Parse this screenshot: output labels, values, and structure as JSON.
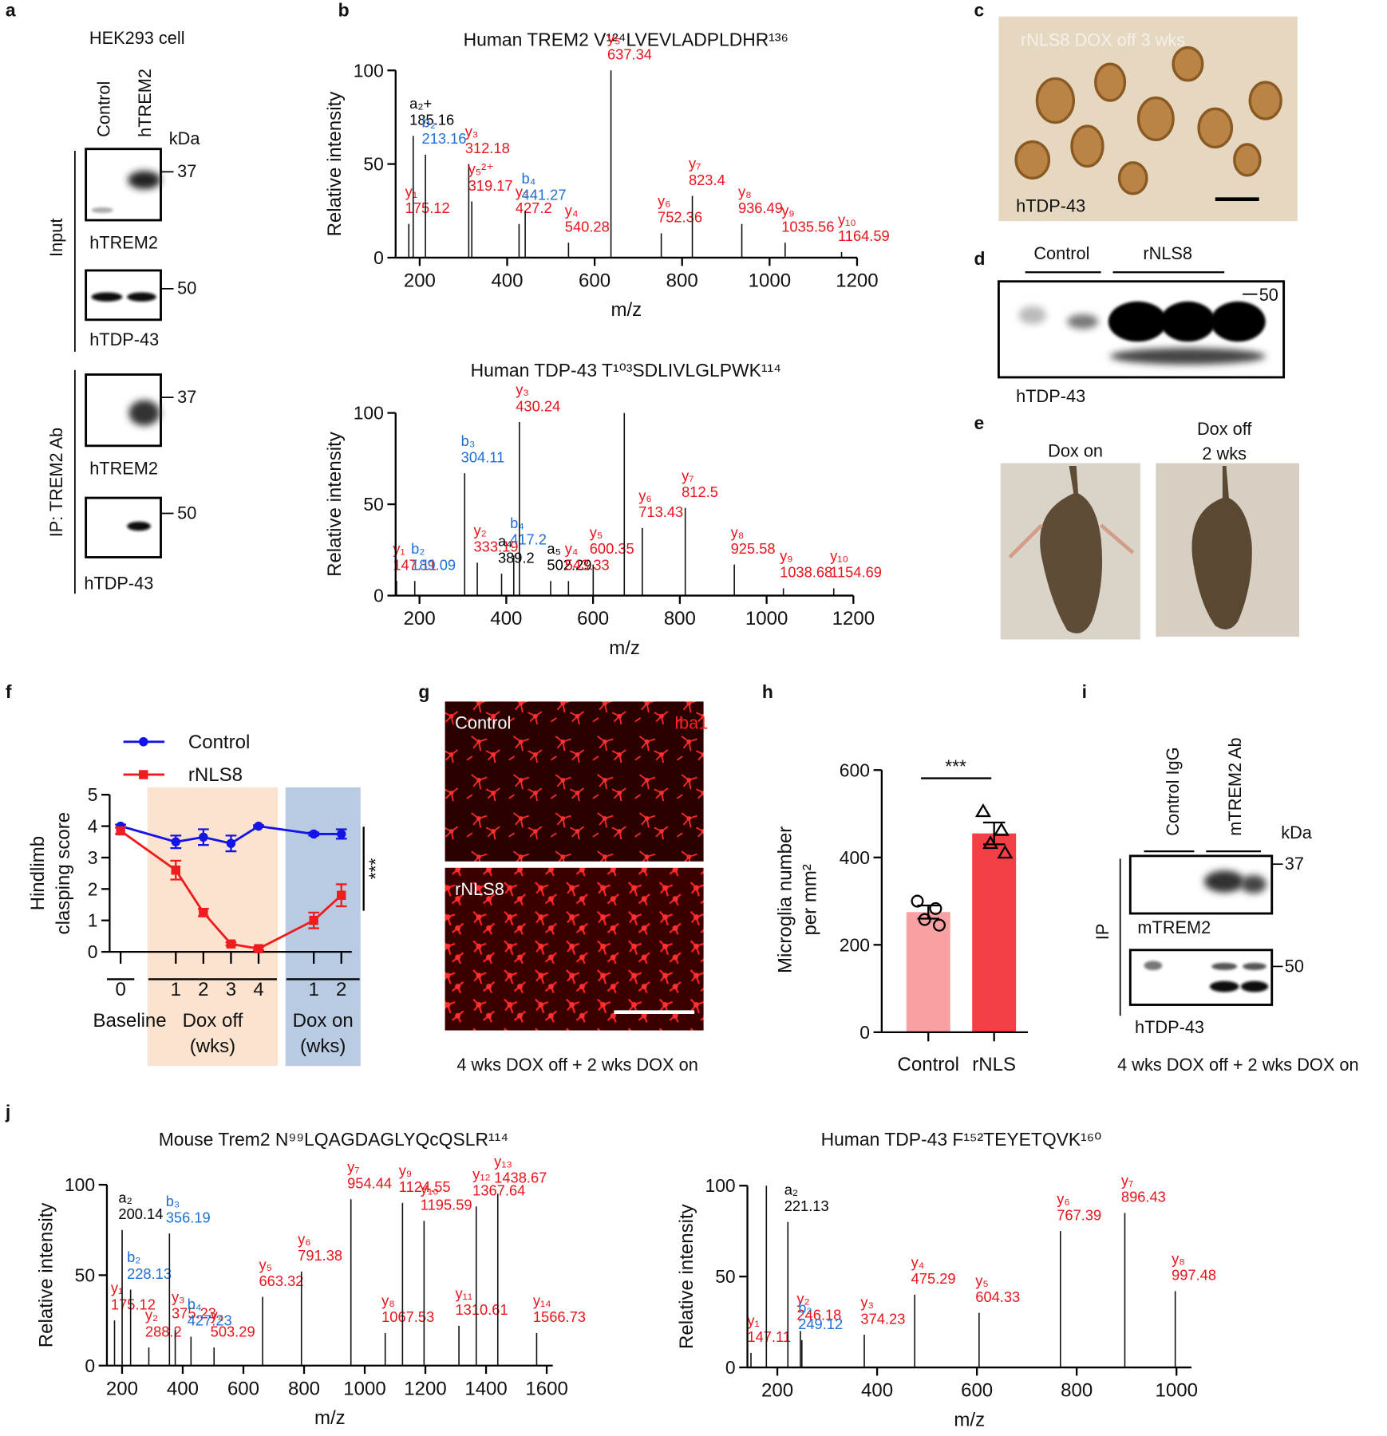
{
  "panel_labels": [
    "a",
    "b",
    "c",
    "d",
    "e",
    "f",
    "g",
    "h",
    "i",
    "j"
  ],
  "panel_a": {
    "cell": "HEK293 cell",
    "lanes": [
      "Control",
      "hTREM2"
    ],
    "kda": "kDa",
    "groups": [
      "Input",
      "IP: TREM2 Ab"
    ],
    "blots": [
      {
        "label": "hTREM2",
        "marker": "37"
      },
      {
        "label": "hTDP-43",
        "marker": "50"
      },
      {
        "label": "hTREM2",
        "marker": "37"
      },
      {
        "label": "hTDP-43",
        "marker": "50"
      }
    ]
  },
  "panel_c": {
    "caption": "rNLS8 DOX off 3 wks",
    "stain": "hTDP-43"
  },
  "panel_d": {
    "groups": [
      "Control",
      "rNLS8"
    ],
    "marker": "50",
    "label": "hTDP-43"
  },
  "panel_e": {
    "labels": [
      "Dox on",
      "Dox off",
      "2 wks"
    ]
  },
  "panel_g": {
    "images": [
      "Control",
      "rNLS8"
    ],
    "stain": "Iba1",
    "caption": "4 wks DOX off + 2 wks DOX on"
  },
  "panel_i": {
    "lanes": [
      "Control IgG",
      "mTREM2 Ab"
    ],
    "kda": "kDa",
    "group": "IP",
    "blots": [
      {
        "label": "mTREM2",
        "marker": "37"
      },
      {
        "label": "hTDP-43",
        "marker": "50"
      }
    ],
    "caption": "4 wks DOX off + 2 wks DOX on"
  },
  "chart_data": [
    {
      "type": "spectrum",
      "title": "Human TREM2 V¹²⁴LVEVLADPLDHR¹³⁶",
      "xlabel": "m/z",
      "ylabel": "Relative intensity",
      "xlim": [
        145,
        1200
      ],
      "ylim": [
        0,
        100
      ],
      "xticks": [
        200,
        400,
        600,
        800,
        1000,
        1200
      ],
      "yticks": [
        0,
        50,
        100
      ],
      "ion_colors": {
        "y": "#e8141b",
        "b": "#1e6fd6",
        "a": "#000000"
      },
      "mz": [
        175.12,
        185.16,
        213.16,
        312.18,
        319.17,
        427.2,
        441.27,
        540.28,
        637.34,
        752.36,
        823.4,
        936.49,
        1035.56,
        1164.59
      ],
      "intensity": [
        18,
        65,
        55,
        50,
        30,
        18,
        25,
        8,
        100,
        13,
        33,
        18,
        8,
        3
      ],
      "ion": [
        "y₁",
        "a₂+",
        "b₂",
        "y₃",
        "y₅²⁺",
        "y₃",
        "b₄",
        "y₄",
        "y₅",
        "y₆",
        "y₇",
        "y₈",
        "y₉",
        "y₁₀"
      ]
    },
    {
      "type": "spectrum",
      "title": "Human TDP-43 T¹⁰³SDLIVLGLPWK¹¹⁴",
      "xlabel": "m/z",
      "ylabel": "Relative intensity",
      "xlim": [
        145,
        1200
      ],
      "ylim": [
        0,
        100
      ],
      "xticks": [
        200,
        400,
        600,
        800,
        1000,
        1200
      ],
      "yticks": [
        0,
        50,
        100
      ],
      "ion_colors": {
        "y": "#e8141b",
        "b": "#1e6fd6",
        "a": "#000000"
      },
      "mz": [
        147.11,
        189.09,
        304.11,
        333.19,
        389.2,
        417.2,
        430.24,
        502.29,
        543.33,
        600.35,
        672,
        713.43,
        812.5,
        925.58,
        1038.68,
        1154.69
      ],
      "intensity": [
        8,
        8,
        67,
        18,
        12,
        22,
        95,
        8,
        8,
        17,
        100,
        37,
        48,
        17,
        4,
        4
      ],
      "ion": [
        "y₁",
        "b₂",
        "b₃",
        "y₂",
        "a₄",
        "b₄",
        "y₃",
        "a₅",
        "y₄",
        "y₅",
        null,
        "y₆",
        "y₇",
        "y₈",
        "y₉",
        "y₁₀"
      ]
    },
    {
      "type": "line",
      "ylabel": [
        "Hindlimb",
        "clasping  score"
      ],
      "ylim": [
        0,
        5
      ],
      "yticks": [
        0,
        1,
        2,
        3,
        4,
        5
      ],
      "groups": [
        {
          "name": [
            "Baseline"
          ],
          "categories": [
            "0"
          ]
        },
        {
          "name": [
            "Dox off",
            "(wks)"
          ],
          "categories": [
            "1",
            "2",
            "3",
            "4"
          ],
          "color": "#fbe3cf"
        },
        {
          "name": [
            "Dox on",
            "(wks)"
          ],
          "categories": [
            "1",
            "2"
          ],
          "color": "#b8cbe3"
        }
      ],
      "series": [
        {
          "name": "Control",
          "color": "#1414e6",
          "marker": "circle",
          "values": [
            4.0,
            3.5,
            3.65,
            3.45,
            4.0,
            3.75,
            3.75
          ],
          "errors": [
            0.05,
            0.2,
            0.25,
            0.25,
            0.03,
            0.05,
            0.15
          ]
        },
        {
          "name": "rNLS8",
          "color": "#ee1c1c",
          "marker": "square",
          "values": [
            3.85,
            2.6,
            1.25,
            0.25,
            0.1,
            1.0,
            1.8
          ],
          "errors": [
            0.1,
            0.3,
            0.12,
            0.05,
            0.05,
            0.25,
            0.35
          ]
        }
      ],
      "annotation": "***",
      "legend": "upper left"
    },
    {
      "type": "bar",
      "ylabel": [
        "Microglia number",
        "per mm²"
      ],
      "categories": [
        "Control",
        "rNLS"
      ],
      "values": [
        275,
        455
      ],
      "errors": [
        15,
        25
      ],
      "colors": [
        "#f9a0a3",
        "#f43f45"
      ],
      "points": [
        [
          300,
          283,
          258,
          245
        ],
        [
          505,
          462,
          432,
          410
        ]
      ],
      "markers": [
        "circle",
        "triangle"
      ],
      "ylim": [
        0,
        600
      ],
      "yticks": [
        0,
        200,
        400,
        600
      ],
      "annotation": "***"
    },
    {
      "type": "spectrum",
      "title": "Mouse Trem2 N⁹⁹LQAGDAGLYQcQSLR¹¹⁴",
      "xlabel": "m/z",
      "ylabel": "Relative intensity",
      "xlim": [
        150,
        1620
      ],
      "ylim": [
        0,
        100
      ],
      "xticks": [
        200,
        400,
        600,
        800,
        1000,
        1200,
        1400,
        1600
      ],
      "yticks": [
        0,
        50,
        100
      ],
      "ion_colors": {
        "y": "#e8141b",
        "b": "#1e6fd6",
        "a": "#000000"
      },
      "mz": [
        175.12,
        200.14,
        228.13,
        288.2,
        356.19,
        375.23,
        427.23,
        503.29,
        663.32,
        791.38,
        954.44,
        1067.53,
        1124.55,
        1195.59,
        1310.61,
        1367.64,
        1438.67,
        1566.73
      ],
      "intensity": [
        25,
        75,
        42,
        10,
        73,
        20,
        16,
        10,
        38,
        52,
        92,
        18,
        90,
        80,
        22,
        88,
        95,
        18
      ],
      "ion": [
        "y₁",
        "a₂",
        "b₂",
        "y₂",
        "b₃",
        "y₃",
        "b₄",
        "y₄",
        "y₅",
        "y₆",
        "y₇",
        "y₈",
        "y₉",
        "y₁₀",
        "y₁₁",
        "y₁₂",
        "y₁₃",
        "y₁₄"
      ]
    },
    {
      "type": "spectrum",
      "title": "Human TDP-43 F¹⁵²TEYETQVK¹⁶⁰",
      "xlabel": "m/z",
      "ylabel": "Relative intensity",
      "xlim": [
        140,
        1030
      ],
      "ylim": [
        0,
        100
      ],
      "xticks": [
        200,
        400,
        600,
        800,
        1000
      ],
      "yticks": [
        0,
        50,
        100
      ],
      "ion_colors": {
        "y": "#e8141b",
        "b": "#1e6fd6",
        "a": "#000000"
      },
      "mz": [
        147.11,
        178,
        221.13,
        246.18,
        249.12,
        374.23,
        475.29,
        604.33,
        767.39,
        896.43,
        997.48
      ],
      "intensity": [
        8,
        100,
        80,
        20,
        15,
        18,
        40,
        30,
        75,
        85,
        42
      ],
      "ion": [
        "y₁",
        null,
        "a₂",
        "y₂",
        "b₂",
        "y₃",
        "y₄",
        "y₅",
        "y₆",
        "y₇",
        "y₈"
      ]
    }
  ]
}
